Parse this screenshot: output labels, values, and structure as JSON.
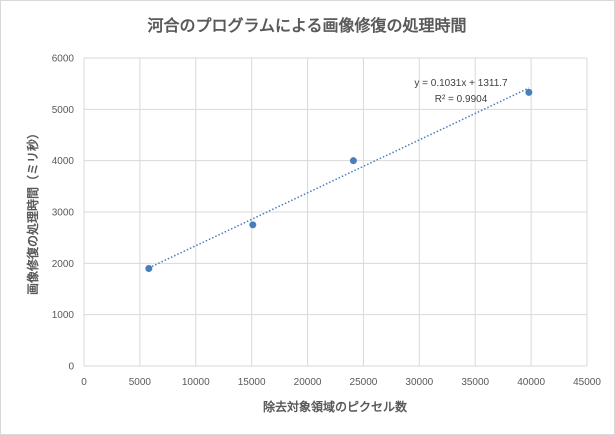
{
  "chart_data": {
    "type": "scatter",
    "title": "河合のプログラムによる画像修復の処理時間",
    "xlabel": "除去対象領域のピクセル数",
    "ylabel": "画像修復の処理時間（ミリ秒）",
    "xlim": [
      0,
      45000
    ],
    "ylim": [
      0,
      6000
    ],
    "x_ticks": [
      "0",
      "5000",
      "10000",
      "15000",
      "20000",
      "25000",
      "30000",
      "35000",
      "40000",
      "45000"
    ],
    "y_ticks": [
      "0",
      "1000",
      "2000",
      "3000",
      "4000",
      "5000",
      "6000"
    ],
    "grid": true,
    "series": [
      {
        "x": [
          5800,
          15100,
          24100,
          39800
        ],
        "y": [
          1900,
          2750,
          4000,
          5330
        ],
        "color": "#4a7ebb"
      }
    ],
    "trendline": {
      "type": "linear",
      "slope": 0.1031,
      "intercept": 1311.7,
      "equation": "y = 0.1031x + 1311.7",
      "r_squared": "R² = 0.9904",
      "color": "#4a7ebb",
      "style": "dotted"
    }
  }
}
